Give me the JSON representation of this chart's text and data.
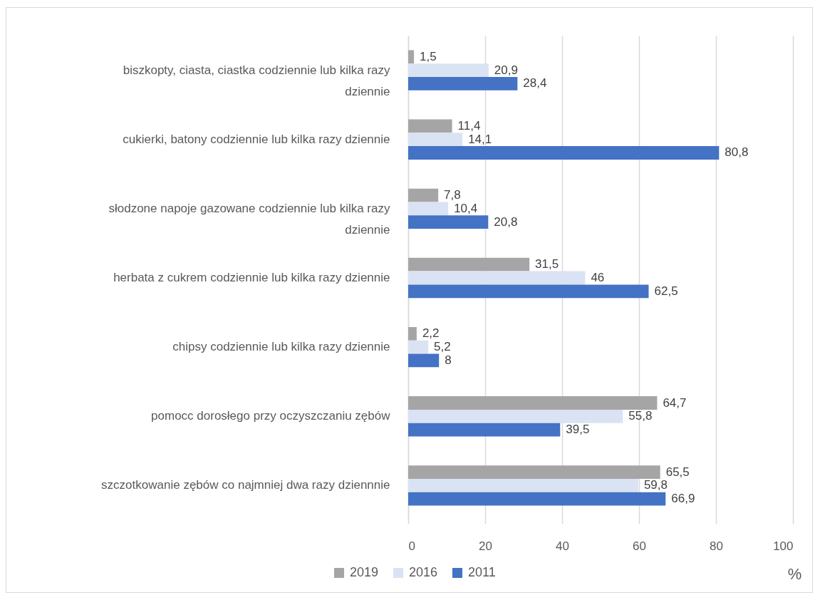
{
  "chart_data": {
    "type": "bar",
    "orientation": "horizontal",
    "categories": [
      "biszkopty, ciasta, ciastka codziennie lub kilka razy dziennie",
      "cukierki, batony codziennie lub kilka razy dziennie",
      "słodzone napoje gazowane codziennie lub kilka razy dziennie",
      "herbata z cukrem codziennie lub kilka razy dziennie",
      "chipsy codziennie lub kilka razy dziennie",
      "pomocc dorosłego przy oczyszczaniu zębów",
      "szczotkowanie zębów co najmniej dwa razy dziennnie"
    ],
    "series": [
      {
        "name": "2019",
        "color": "#a5a5a5",
        "values": [
          1.5,
          11.4,
          7.8,
          31.5,
          2.2,
          64.7,
          65.5
        ],
        "value_labels": [
          "1,5",
          "11,4",
          "7,8",
          "31,5",
          "2,2",
          "64,7",
          "65,5"
        ]
      },
      {
        "name": "2016",
        "color": "#dae3f3",
        "values": [
          20.9,
          14.1,
          10.4,
          46,
          5.2,
          55.8,
          59.8
        ],
        "value_labels": [
          "20,9",
          "14,1",
          "10,4",
          "46",
          "5,2",
          "55,8",
          "59,8"
        ]
      },
      {
        "name": "2011",
        "color": "#4472c4",
        "values": [
          28.4,
          80.8,
          20.8,
          62.5,
          8,
          39.5,
          66.9
        ],
        "value_labels": [
          "28,4",
          "80,8",
          "20,8",
          "62,5",
          "8",
          "39,5",
          "66,9"
        ]
      }
    ],
    "xlim": [
      0,
      100
    ],
    "xticks": [
      0,
      20,
      40,
      60,
      80,
      100
    ],
    "xlabel": "%",
    "grid": "x",
    "legend": "bottom"
  }
}
